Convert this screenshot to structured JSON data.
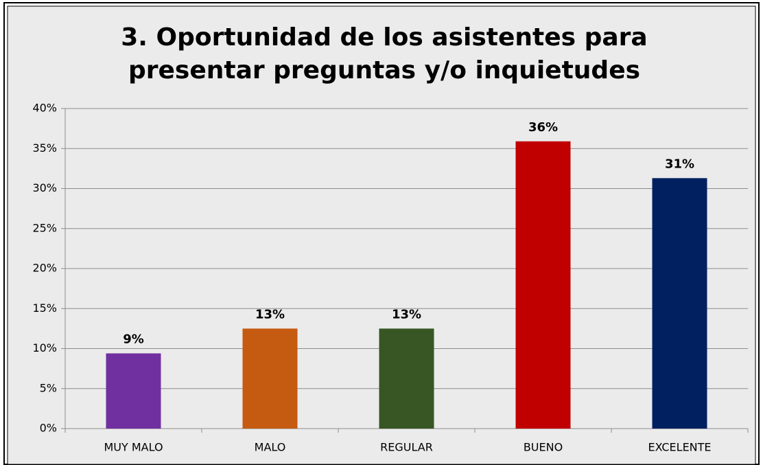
{
  "chart_data": {
    "type": "bar",
    "title": [
      "3. Oportunidad de los asistentes para",
      "presentar preguntas y/o inquietudes"
    ],
    "categories": [
      "MUY MALO",
      "MALO",
      "REGULAR",
      "BUENO",
      "EXCELENTE"
    ],
    "values": [
      9.4,
      12.5,
      12.5,
      35.9,
      31.3
    ],
    "value_labels": [
      "9%",
      "13%",
      "13%",
      "36%",
      "31%"
    ],
    "colors": [
      "#7030a0",
      "#c55a11",
      "#375623",
      "#c00000",
      "#002060"
    ],
    "ylim": [
      0,
      40
    ],
    "yticks": [
      {
        "value": 0,
        "label": "0%"
      },
      {
        "value": 5,
        "label": "5%"
      },
      {
        "value": 10,
        "label": "10%"
      },
      {
        "value": 15,
        "label": "15%"
      },
      {
        "value": 20,
        "label": "20%"
      },
      {
        "value": 25,
        "label": "25%"
      },
      {
        "value": 30,
        "label": "30%"
      },
      {
        "value": 35,
        "label": "35%"
      },
      {
        "value": 40,
        "label": "40%"
      }
    ],
    "grid": true
  }
}
